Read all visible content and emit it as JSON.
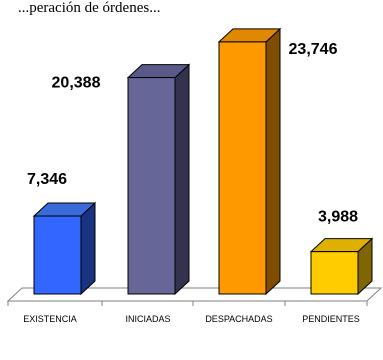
{
  "chart_data": {
    "type": "bar",
    "title": "",
    "title_partial": "...peración de órdenes...",
    "categories": [
      "EXISTENCIA",
      "INICIADAS",
      "DESPACHADAS",
      "PENDIENTES"
    ],
    "values": [
      7346,
      20388,
      23746,
      3988
    ],
    "value_labels": [
      "7,346",
      "20,388",
      "23,746",
      "3,988"
    ],
    "colors": [
      "#3366FF",
      "#666699",
      "#FF9900",
      "#FFCC00"
    ],
    "side_colors": [
      "#1A3380",
      "#33334D",
      "#804C00",
      "#806600"
    ],
    "top_colors": [
      "#3B6BD9",
      "#5A5A8A",
      "#E08800",
      "#E0B000"
    ],
    "xlabel": "",
    "ylabel": "",
    "ylim": [
      0,
      26000
    ],
    "grid": false,
    "legend": "none"
  }
}
